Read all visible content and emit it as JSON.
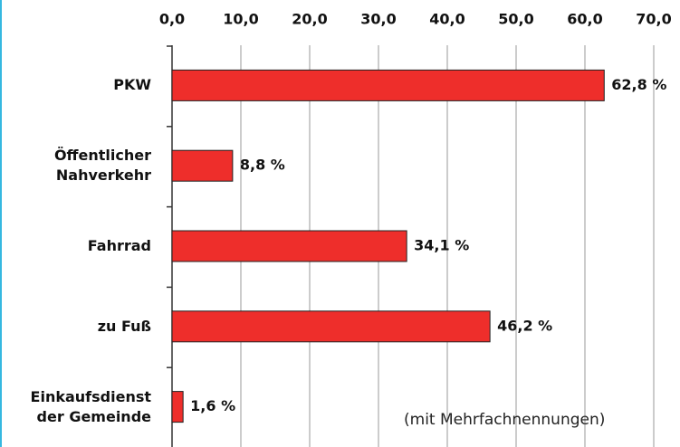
{
  "chart_data": {
    "type": "bar",
    "orientation": "horizontal",
    "categories": [
      "PKW",
      "Öffentlicher\nNahverkehr",
      "Fahrrad",
      "zu Fuß",
      "Einkaufsdienst\nder Gemeinde"
    ],
    "values": [
      62.8,
      8.8,
      34.1,
      46.2,
      1.6
    ],
    "value_labels": [
      "62,8 %",
      "8,8 %",
      "34,1 %",
      "46,2 %",
      "1,6 %"
    ],
    "color": "#ee2e2b",
    "xlim": [
      0,
      70
    ],
    "xticks": [
      {
        "value": 0,
        "label": "0,0"
      },
      {
        "value": 10,
        "label": "10,0"
      },
      {
        "value": 20,
        "label": "20,0"
      },
      {
        "value": 30,
        "label": "30,0"
      },
      {
        "value": 40,
        "label": "40,0"
      },
      {
        "value": 50,
        "label": "50,0"
      },
      {
        "value": 60,
        "label": "60,0"
      },
      {
        "value": 70,
        "label": "70,0"
      }
    ],
    "grid": true,
    "annotation": "(mit Mehrfachnennungen)"
  }
}
